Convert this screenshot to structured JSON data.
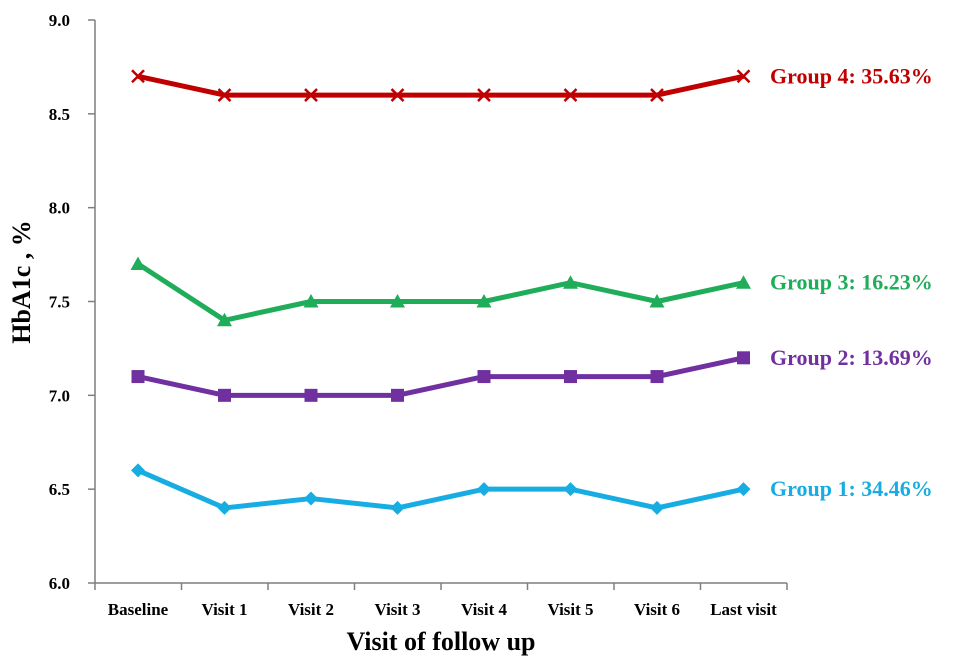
{
  "chart_data": {
    "type": "line",
    "title": "",
    "xlabel": "Visit of follow up",
    "ylabel": "HbA1c , %",
    "categories": [
      "Baseline",
      "Visit 1",
      "Visit 2",
      "Visit 3",
      "Visit 4",
      "Visit 5",
      "Visit 6",
      "Last visit"
    ],
    "ylim": [
      6.0,
      9.0
    ],
    "yticks": [
      "6.0",
      "6.5",
      "7.0",
      "7.5",
      "8.0",
      "8.5",
      "9.0"
    ],
    "grid": false,
    "legend": "labels at right end of each series",
    "series": [
      {
        "name": "Group 4: 35.63%",
        "color": "#c00000",
        "marker": "x",
        "values": [
          8.7,
          8.6,
          8.6,
          8.6,
          8.6,
          8.6,
          8.6,
          8.7
        ]
      },
      {
        "name": "Group 3: 16.23%",
        "color": "#1fad5a",
        "marker": "triangle",
        "values": [
          7.7,
          7.4,
          7.5,
          7.5,
          7.5,
          7.6,
          7.5,
          7.6
        ]
      },
      {
        "name": "Group 2: 13.69%",
        "color": "#7030a0",
        "marker": "square",
        "values": [
          7.1,
          7.0,
          7.0,
          7.0,
          7.1,
          7.1,
          7.1,
          7.2
        ]
      },
      {
        "name": "Group 1: 34.46%",
        "color": "#17ade2",
        "marker": "diamond",
        "values": [
          6.6,
          6.4,
          6.45,
          6.4,
          6.5,
          6.5,
          6.4,
          6.5
        ]
      }
    ]
  }
}
